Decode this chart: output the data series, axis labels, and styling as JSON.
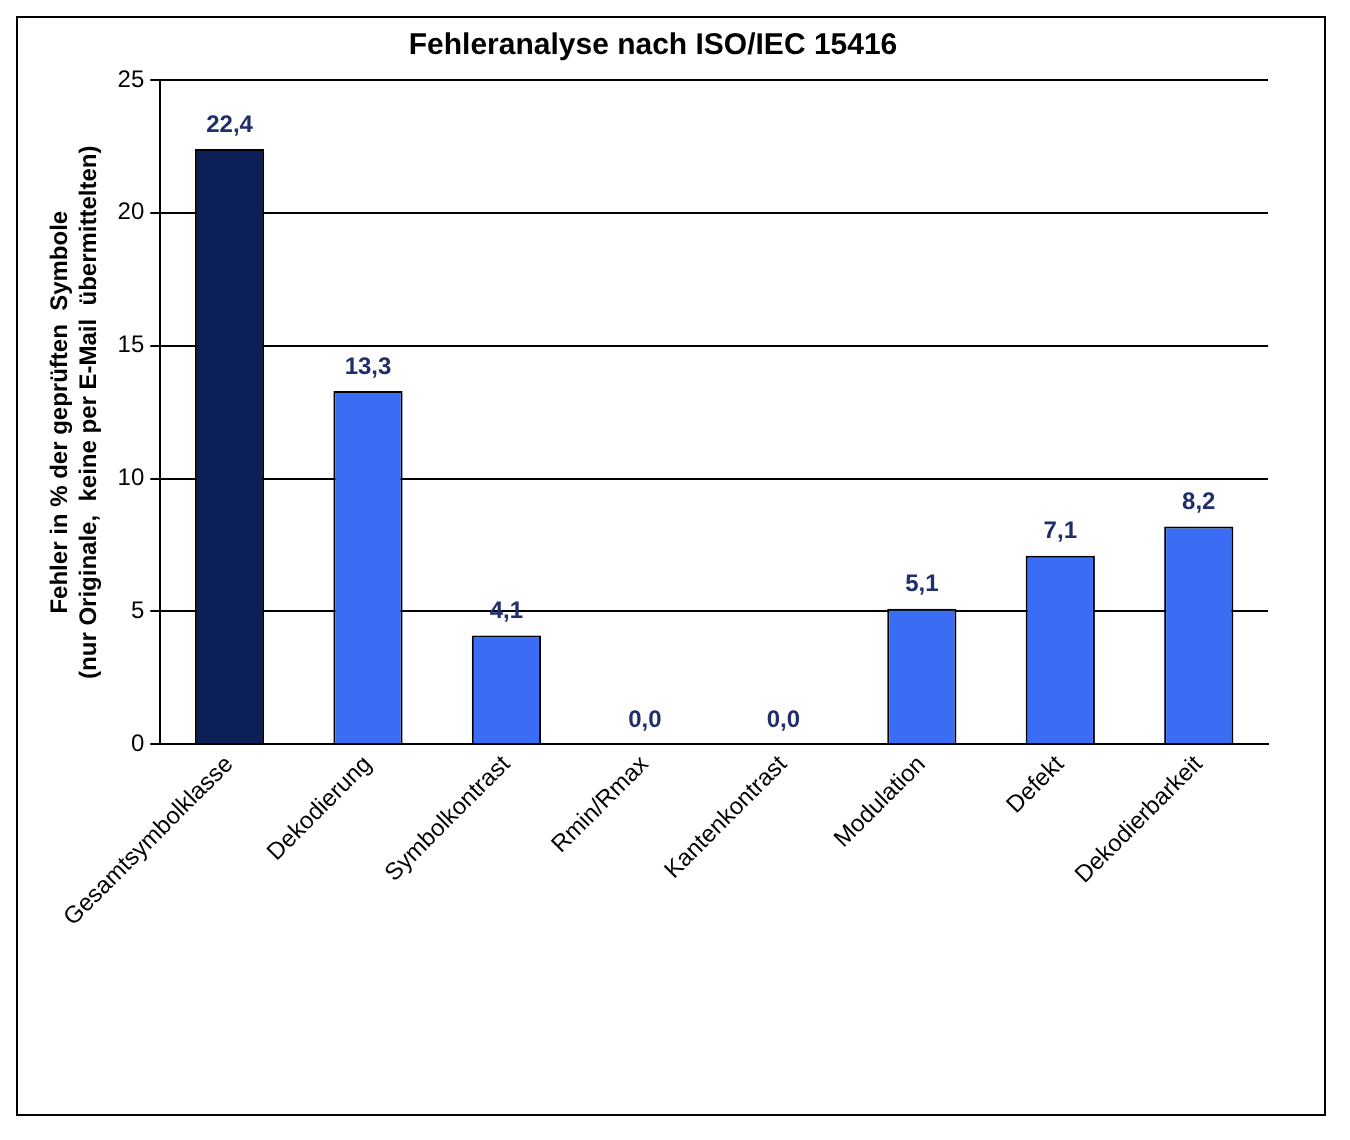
{
  "chart_data": {
    "type": "bar",
    "title": "Fehleranalyse nach ISO/IEC 15416",
    "ylabel": "Fehler in % der geprüften  Symbole\n(nur Originale,  keine per E-Mail  übermittelten)",
    "categories": [
      "Gesamtsymbolklasse",
      "Dekodierung",
      "Symbolkontrast",
      "Rmin/Rmax",
      "Kantenkontrast",
      "Modulation",
      "Defekt",
      "Dekodierbarkeit"
    ],
    "values": [
      22.4,
      13.3,
      4.1,
      0.0,
      0.0,
      5.1,
      7.1,
      8.2
    ],
    "colors": [
      "#0c2057",
      "#3b6cf4",
      "#3b6cf4",
      "#3b6cf4",
      "#3b6cf4",
      "#3b6cf4",
      "#3b6cf4",
      "#3b6cf4"
    ],
    "value_labels": [
      "22,4",
      "13,3",
      "4,1",
      "0,0",
      "0,0",
      "5,1",
      "7,1",
      "8,2"
    ],
    "ylim": [
      0,
      25
    ],
    "yticks": [
      0,
      5,
      10,
      15,
      20,
      25
    ],
    "grid": "y",
    "legend": false
  }
}
